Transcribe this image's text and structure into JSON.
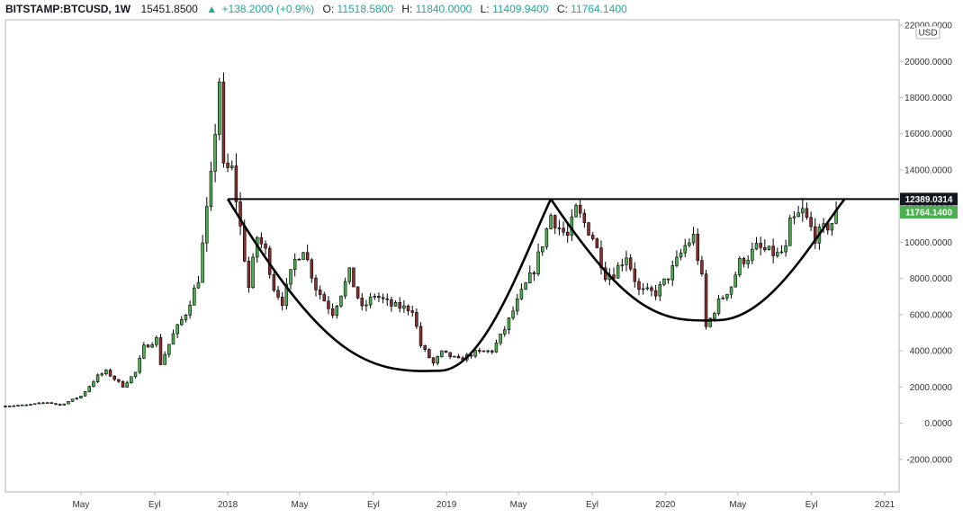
{
  "header": {
    "symbol": "BITSTAMP:BTCUSD, 1W",
    "last": "15451.8500",
    "change": "+138.2000 (+0.9%)",
    "o_label": "O:",
    "o_value": "11518.5800",
    "h_label": "H:",
    "h_value": "11840.0000",
    "l_label": "L:",
    "l_value": "11409.9400",
    "c_label": "C:",
    "c_value": "11764.1400"
  },
  "currency_label": "USD",
  "price_badges": {
    "resistance": "12389.0314",
    "last_close": "11764.1400"
  },
  "colors": {
    "up": "#4caf50",
    "down": "#8b2e2e",
    "accent_green": "#26a69a",
    "pattern_line": "#000000"
  },
  "chart_data": {
    "type": "candlestick",
    "timeframe": "1W",
    "title": "",
    "ylim": [
      -3800,
      22300
    ],
    "y_ticks": [
      -2000,
      0,
      2000,
      4000,
      6000,
      8000,
      10000,
      12000,
      14000,
      16000,
      18000,
      20000,
      22000
    ],
    "y_tick_labels": [
      "-2000.0000",
      "0.0000",
      "2000.0000",
      "4000.0000",
      "6000.0000",
      "8000.0000",
      "10000.0000",
      "12000.0000",
      "14000.0000",
      "16000.0000",
      "18000.0000",
      "20000.0000",
      "22000.0000"
    ],
    "x_range": [
      "2016-12-26",
      "2021-01-25"
    ],
    "x_ticks": [
      {
        "date": "2017-05-01",
        "label": "May"
      },
      {
        "date": "2017-09-01",
        "label": "Eyl"
      },
      {
        "date": "2018-01-01",
        "label": "2018"
      },
      {
        "date": "2018-05-01",
        "label": "May"
      },
      {
        "date": "2018-09-01",
        "label": "Eyl"
      },
      {
        "date": "2019-01-01",
        "label": "2019"
      },
      {
        "date": "2019-05-01",
        "label": "May"
      },
      {
        "date": "2019-09-01",
        "label": "Eyl"
      },
      {
        "date": "2020-01-01",
        "label": "2020"
      },
      {
        "date": "2020-05-01",
        "label": "May"
      },
      {
        "date": "2020-09-01",
        "label": "Eyl"
      },
      {
        "date": "2021-01-01",
        "label": "2021"
      }
    ],
    "close_path": [
      [
        "2016-12-26",
        960
      ],
      [
        "2017-01-30",
        1000
      ],
      [
        "2017-03-06",
        1150
      ],
      [
        "2017-03-27",
        1000
      ],
      [
        "2017-05-01",
        1500
      ],
      [
        "2017-05-29",
        2600
      ],
      [
        "2017-06-12",
        2850
      ],
      [
        "2017-07-10",
        2050
      ],
      [
        "2017-07-31",
        2800
      ],
      [
        "2017-08-14",
        4200
      ],
      [
        "2017-09-04",
        4650
      ],
      [
        "2017-09-11",
        3300
      ],
      [
        "2017-10-02",
        4900
      ],
      [
        "2017-10-23",
        6100
      ],
      [
        "2017-11-13",
        8000
      ],
      [
        "2017-12-04",
        13500
      ],
      [
        "2017-12-18",
        19000
      ],
      [
        "2017-12-25",
        14000
      ],
      [
        "2018-01-08",
        14000
      ],
      [
        "2018-01-22",
        10800
      ],
      [
        "2018-02-05",
        7500
      ],
      [
        "2018-02-19",
        10300
      ],
      [
        "2018-03-05",
        9500
      ],
      [
        "2018-03-19",
        7500
      ],
      [
        "2018-04-02",
        6700
      ],
      [
        "2018-04-23",
        9000
      ],
      [
        "2018-05-07",
        9700
      ],
      [
        "2018-05-28",
        7500
      ],
      [
        "2018-06-25",
        6100
      ],
      [
        "2018-07-23",
        8300
      ],
      [
        "2018-08-13",
        6300
      ],
      [
        "2018-09-03",
        7100
      ],
      [
        "2018-10-01",
        6500
      ],
      [
        "2018-11-05",
        6300
      ],
      [
        "2018-11-19",
        4300
      ],
      [
        "2018-12-10",
        3300
      ],
      [
        "2018-12-24",
        3900
      ],
      [
        "2019-01-21",
        3500
      ],
      [
        "2019-02-18",
        3900
      ],
      [
        "2019-03-18",
        4000
      ],
      [
        "2019-04-08",
        5200
      ],
      [
        "2019-05-06",
        7200
      ],
      [
        "2019-05-27",
        8500
      ],
      [
        "2019-06-17",
        10700
      ],
      [
        "2019-06-24",
        11500
      ],
      [
        "2019-07-08",
        10800
      ],
      [
        "2019-07-22",
        10300
      ],
      [
        "2019-08-05",
        11800
      ],
      [
        "2019-09-02",
        10300
      ],
      [
        "2019-09-23",
        8200
      ],
      [
        "2019-10-07",
        8300
      ],
      [
        "2019-10-28",
        9300
      ],
      [
        "2019-11-18",
        7300
      ],
      [
        "2019-12-16",
        7200
      ],
      [
        "2020-01-06",
        8100
      ],
      [
        "2020-02-03",
        9800
      ],
      [
        "2020-02-17",
        10300
      ],
      [
        "2020-03-02",
        8000
      ],
      [
        "2020-03-09",
        5300
      ],
      [
        "2020-03-30",
        6700
      ],
      [
        "2020-04-20",
        7600
      ],
      [
        "2020-05-04",
        8900
      ],
      [
        "2020-05-18",
        9200
      ],
      [
        "2020-06-01",
        9700
      ],
      [
        "2020-07-06",
        9300
      ],
      [
        "2020-07-20",
        9600
      ],
      [
        "2020-07-27",
        11000
      ],
      [
        "2020-08-17",
        11700
      ],
      [
        "2020-09-07",
        10300
      ],
      [
        "2020-09-21",
        10700
      ],
      [
        "2020-10-05",
        11100
      ],
      [
        "2020-10-12",
        11764
      ]
    ],
    "annotations": {
      "resistance_level": 12389.0314,
      "pattern": "cup-and-handle (double cup)",
      "cup_arcs": [
        {
          "start": [
            "2018-01-01",
            12389
          ],
          "bottom": [
            "2018-12-17",
            2900
          ],
          "end": [
            "2019-06-24",
            12389
          ]
        },
        {
          "start": [
            "2019-06-24",
            12389
          ],
          "bottom": [
            "2020-03-23",
            5700
          ],
          "end": [
            "2020-10-26",
            12389
          ]
        }
      ]
    }
  }
}
